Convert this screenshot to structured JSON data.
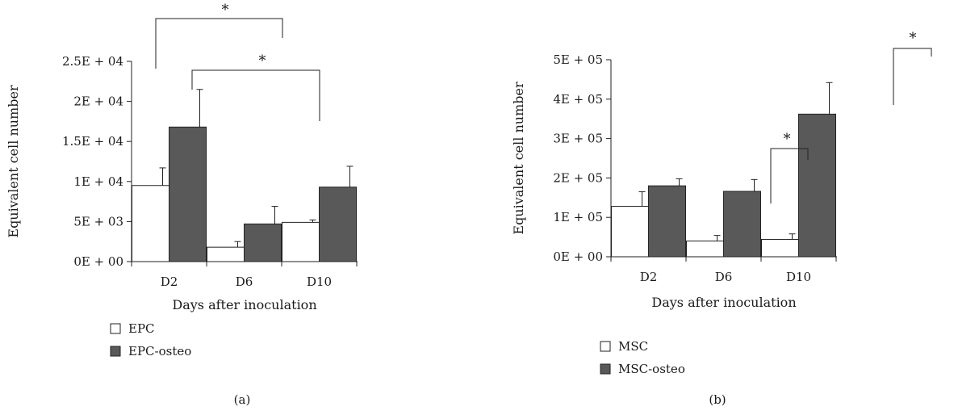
{
  "chart_data": [
    {
      "type": "bar",
      "panel_label": "(a)",
      "categories": [
        "D2",
        "D6",
        "D10"
      ],
      "series": [
        {
          "name": "EPC",
          "values": [
            9500,
            1800,
            4900
          ],
          "errors": [
            2200,
            700,
            300
          ],
          "color": "#ffffff"
        },
        {
          "name": "EPC-osteo",
          "values": [
            16800,
            4700,
            9300
          ],
          "errors": [
            4700,
            2200,
            2600
          ],
          "color": "#595959"
        }
      ],
      "xlabel": "Days after inoculation",
      "ylabel": "Equivalent cell number",
      "ylim": [
        0,
        25000
      ],
      "yticks": [
        0,
        5000,
        10000,
        15000,
        20000,
        25000
      ],
      "ytick_labels": [
        "0E + 00",
        "5E + 03",
        "1E + 04",
        "1.5E + 04",
        "2E + 04",
        "2.5E + 04"
      ],
      "legend_placement": "bottom-left",
      "significance": [
        {
          "from": "D2 EPC",
          "to": "D6 EPC-osteo",
          "label": "*"
        },
        {
          "from": "D2 EPC-osteo",
          "to": "D6 EPC-osteo",
          "label": "*"
        }
      ]
    },
    {
      "type": "bar",
      "panel_label": "(b)",
      "categories": [
        "D2",
        "D6",
        "D10"
      ],
      "series": [
        {
          "name": "MSC",
          "values": [
            128000,
            40000,
            44000
          ],
          "errors": [
            37000,
            14000,
            14000
          ],
          "color": "#ffffff"
        },
        {
          "name": "MSC-osteo",
          "values": [
            180000,
            166000,
            362000
          ],
          "errors": [
            18000,
            30000,
            80000
          ],
          "color": "#595959"
        }
      ],
      "xlabel": "Days after inoculation",
      "ylabel": "Equivalent cell number",
      "ylim": [
        0,
        500000
      ],
      "yticks": [
        0,
        100000,
        200000,
        300000,
        400000,
        500000
      ],
      "ytick_labels": [
        "0E + 00",
        "1E + 05",
        "2E + 05",
        "3E + 05",
        "4E + 05",
        "5E + 05"
      ],
      "legend_placement": "bottom-left",
      "significance": [
        {
          "from": "D6 MSC",
          "to": "D6 MSC-osteo",
          "label": "*"
        },
        {
          "from": "D10 MSC",
          "to": "D10 MSC-osteo",
          "label": "*"
        }
      ]
    }
  ]
}
